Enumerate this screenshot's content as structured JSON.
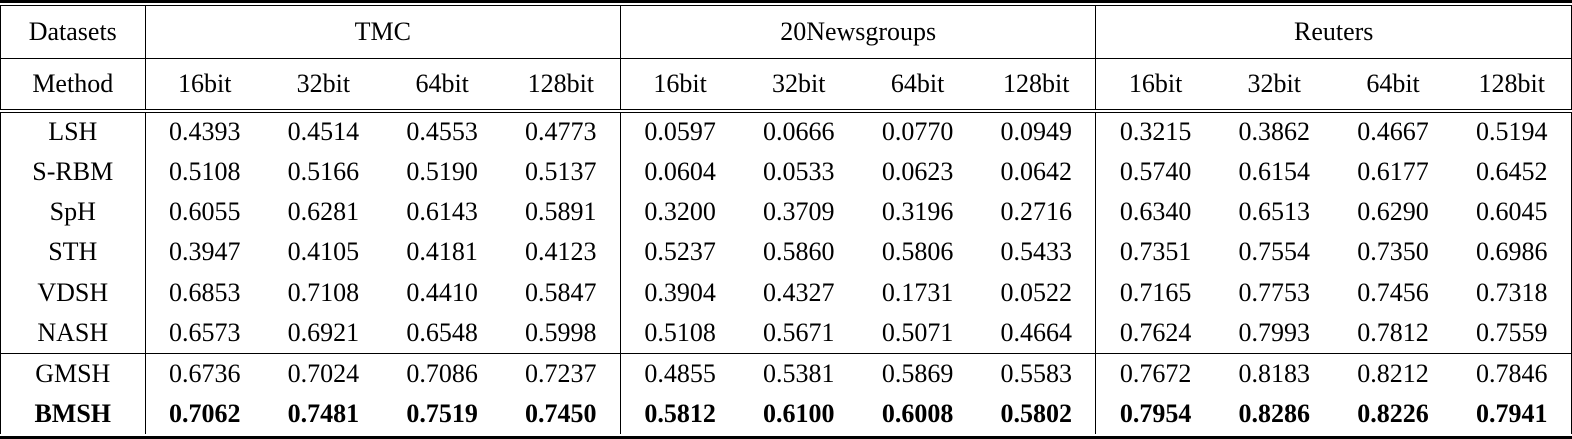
{
  "chart_data": {
    "type": "table",
    "corner": "Datasets",
    "method_header": "Method",
    "col_groups": [
      "TMC",
      "20Newsgroups",
      "Reuters"
    ],
    "bit_columns": [
      "16bit",
      "32bit",
      "64bit",
      "128bit"
    ],
    "rows": [
      {
        "method": "LSH",
        "bold": false,
        "rule_below": false,
        "values": [
          "0.4393",
          "0.4514",
          "0.4553",
          "0.4773",
          "0.0597",
          "0.0666",
          "0.0770",
          "0.0949",
          "0.3215",
          "0.3862",
          "0.4667",
          "0.5194"
        ]
      },
      {
        "method": "S-RBM",
        "bold": false,
        "rule_below": false,
        "values": [
          "0.5108",
          "0.5166",
          "0.5190",
          "0.5137",
          "0.0604",
          "0.0533",
          "0.0623",
          "0.0642",
          "0.5740",
          "0.6154",
          "0.6177",
          "0.6452"
        ]
      },
      {
        "method": "SpH",
        "bold": false,
        "rule_below": false,
        "values": [
          "0.6055",
          "0.6281",
          "0.6143",
          "0.5891",
          "0.3200",
          "0.3709",
          "0.3196",
          "0.2716",
          "0.6340",
          "0.6513",
          "0.6290",
          "0.6045"
        ]
      },
      {
        "method": "STH",
        "bold": false,
        "rule_below": false,
        "values": [
          "0.3947",
          "0.4105",
          "0.4181",
          "0.4123",
          "0.5237",
          "0.5860",
          "0.5806",
          "0.5433",
          "0.7351",
          "0.7554",
          "0.7350",
          "0.6986"
        ]
      },
      {
        "method": "VDSH",
        "bold": false,
        "rule_below": false,
        "values": [
          "0.6853",
          "0.7108",
          "0.4410",
          "0.5847",
          "0.3904",
          "0.4327",
          "0.1731",
          "0.0522",
          "0.7165",
          "0.7753",
          "0.7456",
          "0.7318"
        ]
      },
      {
        "method": "NASH",
        "bold": false,
        "rule_below": true,
        "values": [
          "0.6573",
          "0.6921",
          "0.6548",
          "0.5998",
          "0.5108",
          "0.5671",
          "0.5071",
          "0.4664",
          "0.7624",
          "0.7993",
          "0.7812",
          "0.7559"
        ]
      },
      {
        "method": "GMSH",
        "bold": false,
        "rule_below": false,
        "values": [
          "0.6736",
          "0.7024",
          "0.7086",
          "0.7237",
          "0.4855",
          "0.5381",
          "0.5869",
          "0.5583",
          "0.7672",
          "0.8183",
          "0.8212",
          "0.7846"
        ]
      },
      {
        "method": "BMSH",
        "bold": true,
        "rule_below": false,
        "values": [
          "0.7062",
          "0.7481",
          "0.7519",
          "0.7450",
          "0.5812",
          "0.6100",
          "0.6008",
          "0.5802",
          "0.7954",
          "0.8286",
          "0.8226",
          "0.7941"
        ]
      }
    ],
    "colors": {
      "text": "#000000",
      "rules": "#000000",
      "background": "#ffffff"
    }
  }
}
